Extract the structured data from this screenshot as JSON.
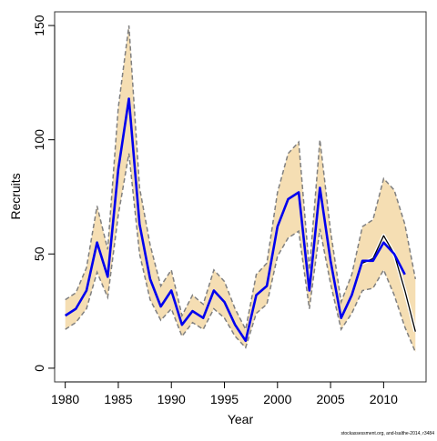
{
  "chart_data": {
    "type": "line",
    "title": "",
    "xlabel": "Year",
    "ylabel": "Recruits",
    "xlim": [
      1979,
      2014
    ],
    "ylim": [
      -6,
      156
    ],
    "x_ticks": [
      1980,
      1985,
      1990,
      1995,
      2000,
      2005,
      2010
    ],
    "y_ticks": [
      0,
      50,
      100,
      150
    ],
    "grid": false,
    "legend": "none",
    "footnote": "stockassessment.org, and-lsalthe-2014, r3484",
    "colors": {
      "band_fill": "#f5deb3",
      "band_edge": "#808080",
      "estimate_line": "#0000ee",
      "alternate_line": "#000000"
    },
    "x": [
      1980,
      1981,
      1982,
      1983,
      1984,
      1985,
      1986,
      1987,
      1988,
      1989,
      1990,
      1991,
      1992,
      1993,
      1994,
      1995,
      1996,
      1997,
      1998,
      1999,
      2000,
      2001,
      2002,
      2003,
      2004,
      2005,
      2006,
      2007,
      2008,
      2009,
      2010,
      2011,
      2012,
      2013
    ],
    "series": [
      {
        "values": [
          23,
          26,
          34,
          55,
          40,
          87,
          118,
          63,
          39,
          27,
          34,
          19,
          25,
          22,
          34,
          29,
          19,
          12,
          32,
          36,
          62,
          74,
          77,
          34,
          79,
          47,
          22,
          32,
          47,
          47,
          55,
          50,
          41,
          null
        ]
      },
      {
        "values": [
          null,
          null,
          null,
          null,
          null,
          null,
          null,
          null,
          null,
          null,
          null,
          null,
          null,
          null,
          null,
          null,
          null,
          null,
          null,
          null,
          null,
          null,
          null,
          null,
          null,
          null,
          null,
          null,
          46,
          48,
          58,
          50,
          34,
          16
        ]
      }
    ],
    "band": {
      "upper": [
        30,
        33,
        44,
        71,
        52,
        114,
        150,
        79,
        54,
        36,
        43,
        23,
        32,
        28,
        43,
        38,
        26,
        17,
        41,
        46,
        77,
        94,
        99,
        43,
        100,
        60,
        29,
        41,
        62,
        65,
        83,
        78,
        63,
        39
      ],
      "lower": [
        17,
        20,
        26,
        42,
        31,
        67,
        94,
        50,
        30,
        21,
        26,
        14,
        20,
        17,
        26,
        22,
        14,
        9,
        24,
        28,
        49,
        57,
        60,
        26,
        61,
        37,
        17,
        24,
        34,
        35,
        43,
        32,
        18,
        7
      ]
    }
  }
}
